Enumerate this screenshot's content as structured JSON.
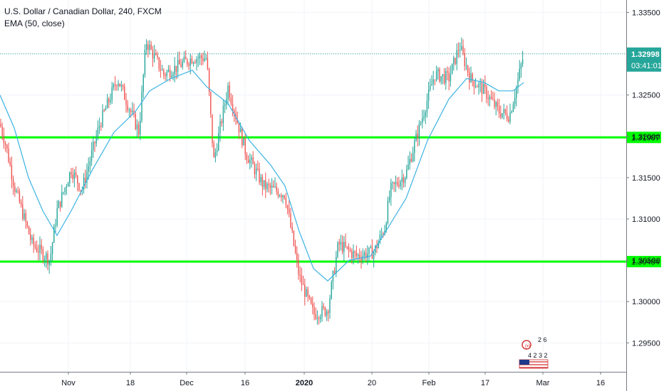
{
  "legend": {
    "symbol": "U.S. Dollar / Canadian Dollar, 240, FXCM",
    "indicator": "EMA (50, close)"
  },
  "price_axis": {
    "ticks": [
      "1.33500",
      "1.33000",
      "1.32500",
      "1.32000",
      "1.31500",
      "1.31000",
      "1.30500",
      "1.30000",
      "1.29500"
    ],
    "last_price_label": "1.32998",
    "countdown_label": "03:41:01",
    "level_labels": [
      "1.31987",
      "1.30484"
    ]
  },
  "time_axis": {
    "ticks": [
      "Nov",
      "18",
      "Dec",
      "16",
      "2020",
      "20",
      "Feb",
      "17",
      "Mar",
      "16"
    ]
  },
  "watermark_badge": {
    "top_digits": "2 6",
    "bottom_digits": "4 2 3 2"
  },
  "colors": {
    "up": "#26a69a",
    "down": "#ef5350",
    "ema": "#3bb3e4",
    "level_line": "#00ff00",
    "last_price_bg": "#26a69a",
    "grid": "#f0f3fa"
  },
  "chart_data": {
    "type": "candlestick",
    "title": "U.S. Dollar / Canadian Dollar, 240, FXCM",
    "ylim": [
      1.2915,
      1.3365
    ],
    "y_ticks": [
      1.335,
      1.33,
      1.325,
      1.32,
      1.315,
      1.31,
      1.305,
      1.3,
      1.295
    ],
    "x_ticks": [
      "Nov",
      "18",
      "Dec",
      "16",
      "2020",
      "20",
      "Feb",
      "17",
      "Mar",
      "16"
    ],
    "horizontal_levels": [
      1.31987,
      1.30484
    ],
    "last_price": 1.32998,
    "price_path_anchors": {
      "x": [
        0,
        8,
        20,
        45,
        70,
        80,
        100,
        115,
        140,
        165,
        195,
        205,
        230,
        250,
        270,
        290,
        300,
        320,
        345,
        370,
        400,
        420,
        440,
        460,
        475,
        500,
        525,
        540,
        548,
        570,
        590,
        610,
        630,
        645,
        660,
        680,
        700,
        715,
        725,
        735
      ],
      "close": [
        1.3215,
        1.319,
        1.314,
        1.307,
        1.305,
        1.311,
        1.316,
        1.3135,
        1.3215,
        1.327,
        1.3205,
        1.3315,
        1.3275,
        1.3285,
        1.3295,
        1.3295,
        1.317,
        1.326,
        1.318,
        1.314,
        1.313,
        1.303,
        1.2985,
        1.299,
        1.307,
        1.3055,
        1.306,
        1.309,
        1.3135,
        1.3155,
        1.3215,
        1.3275,
        1.327,
        1.331,
        1.327,
        1.3255,
        1.323,
        1.3225,
        1.326,
        1.3299
      ]
    },
    "ema_50": {
      "x": [
        0,
        20,
        40,
        60,
        80,
        100,
        130,
        160,
        190,
        210,
        240,
        270,
        290,
        320,
        350,
        380,
        400,
        420,
        440,
        460,
        490,
        520,
        545,
        570,
        600,
        630,
        655,
        680,
        700,
        720,
        735
      ],
      "y": [
        1.325,
        1.321,
        1.315,
        1.311,
        1.308,
        1.311,
        1.316,
        1.3205,
        1.323,
        1.3255,
        1.327,
        1.328,
        1.326,
        1.324,
        1.3195,
        1.3165,
        1.314,
        1.3085,
        1.304,
        1.3025,
        1.305,
        1.3055,
        1.309,
        1.3125,
        1.3195,
        1.3245,
        1.327,
        1.3265,
        1.3255,
        1.3255,
        1.3265
      ]
    }
  }
}
